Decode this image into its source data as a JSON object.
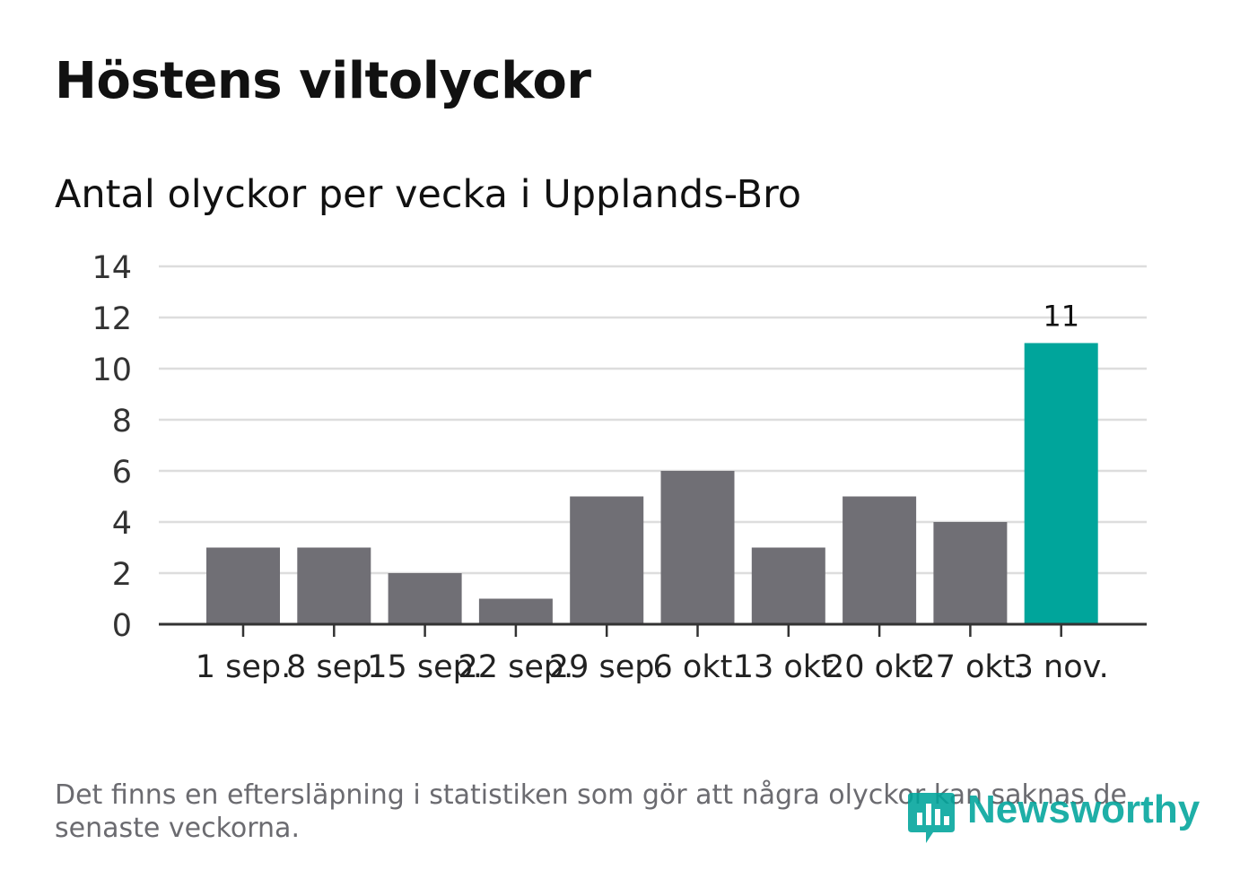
{
  "title": "Höstens viltolyckor",
  "subtitle": "Antal olyckor per vecka i Upplands-Bro",
  "footnote": "Det finns en eftersläpning i statistiken som gör att några olyckor kan saknas de senaste veckorna.",
  "logo": {
    "text": "Newsworthy",
    "icon": "newsworthy-logo-icon"
  },
  "colors": {
    "bar": "#706f75",
    "highlight": "#00a59b",
    "grid": "#dddddd",
    "axis": "#333333",
    "text": "#111111"
  },
  "chart_data": {
    "type": "bar",
    "title": "Antal olyckor per vecka i Upplands-Bro",
    "xlabel": "",
    "ylabel": "",
    "categories": [
      "1 sep.",
      "8 sep.",
      "15 sep.",
      "22 sep.",
      "29 sep.",
      "6 okt.",
      "13 okt.",
      "20 okt.",
      "27 okt.",
      "3 nov."
    ],
    "values": [
      3,
      3,
      2,
      1,
      5,
      6,
      3,
      5,
      4,
      11
    ],
    "highlight_index": 9,
    "data_labels": [
      {
        "index": 9,
        "text": "11"
      }
    ],
    "ylim": [
      0,
      14
    ],
    "yticks": [
      0,
      2,
      4,
      6,
      8,
      10,
      12,
      14
    ],
    "grid": true,
    "legend": "none"
  }
}
